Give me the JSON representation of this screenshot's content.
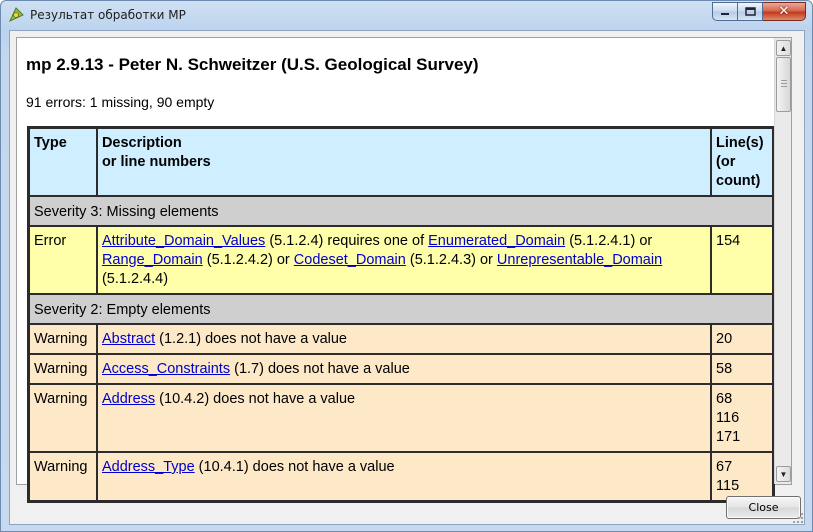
{
  "window": {
    "title": "Результат обработки MP",
    "icon": "qgis-icon",
    "controls": [
      "minimize-icon",
      "maximize-icon",
      "close-icon"
    ]
  },
  "report": {
    "heading": "mp 2.9.13 - Peter N. Schweitzer (U.S. Geological Survey)",
    "summary": "91 errors: 1 missing, 90 empty",
    "columns": {
      "type": "Type",
      "description_line1": "Description",
      "description_line2": "or line numbers",
      "lines_line1": "Line(s)",
      "lines_line2": "(or",
      "lines_line3": "count)"
    },
    "severity3": "Severity 3: Missing elements",
    "error_row": {
      "type": "Error",
      "link1": "Attribute_Domain_Values",
      "text1": " (5.1.2.4) requires one of ",
      "link2": "Enumerated_Domain",
      "text2": " (5.1.2.4.1) or ",
      "link3": "Range_Domain",
      "text3": " (5.1.2.4.2) or ",
      "link4": "Codeset_Domain",
      "text4": " (5.1.2.4.3) or ",
      "link5": "Unrepresentable_Domain",
      "text5": " (5.1.2.4.4)",
      "lines": "154"
    },
    "severity2": "Severity 2: Empty elements",
    "warnings": [
      {
        "type": "Warning",
        "link": "Abstract",
        "text": " (1.2.1) does not have a value",
        "lines": [
          "20"
        ]
      },
      {
        "type": "Warning",
        "link": "Access_Constraints",
        "text": " (1.7) does not have a value",
        "lines": [
          "58"
        ]
      },
      {
        "type": "Warning",
        "link": "Address",
        "text": " (10.4.2) does not have a value",
        "lines": [
          "68",
          "116",
          "171"
        ]
      },
      {
        "type": "Warning",
        "link": "Address_Type",
        "text": " (10.4.1) does not have a value",
        "lines": [
          "67",
          "115"
        ]
      }
    ]
  },
  "buttons": {
    "close": "Close"
  },
  "colors": {
    "header_bg": "#cfeeff",
    "severity_bg": "#cfcfcf",
    "error_bg": "#ffffaa",
    "warning_bg": "#fde9c8",
    "link": "#0000cc"
  }
}
